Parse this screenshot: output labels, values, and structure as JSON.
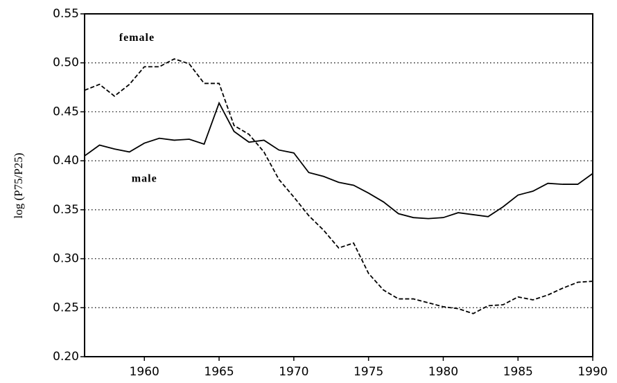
{
  "chart_data": {
    "type": "line",
    "y_label": "log (P75/P25)",
    "x": [
      1956,
      1957,
      1958,
      1959,
      1960,
      1961,
      1962,
      1963,
      1964,
      1965,
      1966,
      1967,
      1968,
      1969,
      1970,
      1971,
      1972,
      1973,
      1974,
      1975,
      1976,
      1977,
      1978,
      1979,
      1980,
      1981,
      1982,
      1983,
      1984,
      1985,
      1986,
      1987,
      1988,
      1989,
      1990
    ],
    "series": [
      {
        "name": "female",
        "color": "#000000",
        "dash": true,
        "values": [
          0.472,
          0.478,
          0.466,
          0.478,
          0.496,
          0.496,
          0.504,
          0.499,
          0.479,
          0.479,
          0.436,
          0.427,
          0.409,
          0.381,
          0.363,
          0.344,
          0.329,
          0.311,
          0.316,
          0.285,
          0.268,
          0.259,
          0.259,
          0.255,
          0.251,
          0.249,
          0.244,
          0.252,
          0.253,
          0.261,
          0.258,
          0.263,
          0.27,
          0.276,
          0.277
        ]
      },
      {
        "name": "male",
        "color": "#000000",
        "dash": false,
        "values": [
          0.405,
          0.416,
          0.412,
          0.409,
          0.418,
          0.423,
          0.421,
          0.422,
          0.417,
          0.459,
          0.43,
          0.419,
          0.421,
          0.411,
          0.408,
          0.388,
          0.384,
          0.378,
          0.375,
          0.367,
          0.358,
          0.346,
          0.342,
          0.341,
          0.342,
          0.347,
          0.345,
          0.343,
          0.353,
          0.365,
          0.369,
          0.377,
          0.376,
          0.376,
          0.387
        ]
      }
    ],
    "xlim": [
      1956,
      1990
    ],
    "xticks": [
      1960,
      1965,
      1970,
      1975,
      1980,
      1985,
      1990
    ],
    "ylim": [
      0.2,
      0.55
    ],
    "yticks": [
      {
        "value": 0.2,
        "label": "0.20"
      },
      {
        "value": 0.25,
        "label": "0.25"
      },
      {
        "value": 0.3,
        "label": "0.30"
      },
      {
        "value": 0.35,
        "label": "0.35"
      },
      {
        "value": 0.4,
        "label": "0.40"
      },
      {
        "value": 0.45,
        "label": "0.45"
      },
      {
        "value": 0.5,
        "label": "0.50"
      },
      {
        "value": 0.55,
        "label": "0.55"
      }
    ],
    "grid": true,
    "series_label_positions": [
      {
        "x": 1959.5,
        "y": 0.525
      },
      {
        "x": 1960,
        "y": 0.381
      }
    ]
  }
}
